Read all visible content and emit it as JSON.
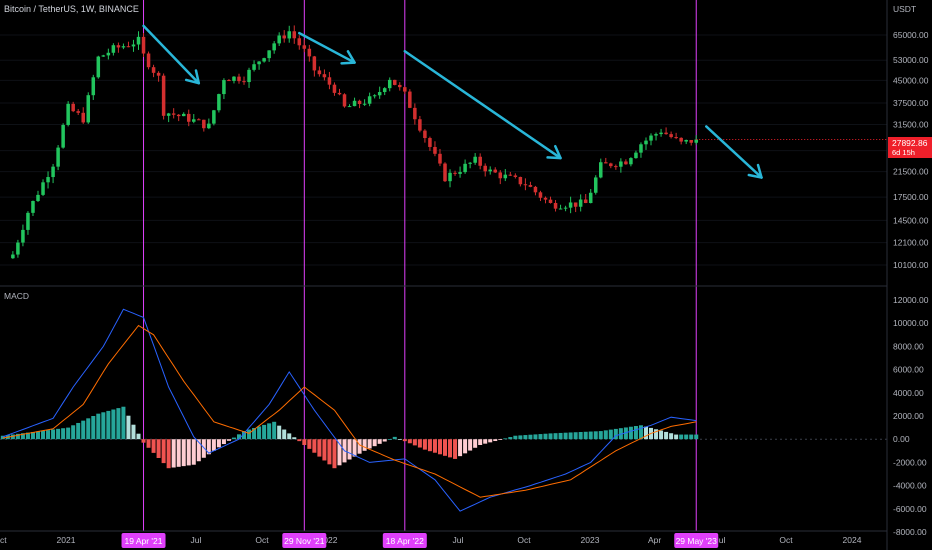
{
  "header": {
    "symbol_line": "Bitcoin / TetherUS, 1W, BINANCE",
    "currency": "USDT"
  },
  "price_badge": {
    "price": "27892.86",
    "countdown": "6d 15h"
  },
  "macd_panel": {
    "label": "MACD"
  },
  "colors": {
    "background": "#000000",
    "up": "#26a69a",
    "down": "#ef5350",
    "candle_up": "#22c55e",
    "candle_down": "#d32f2f",
    "hist_up_strong": "#26a69a",
    "hist_up_weak": "#b2dfdb",
    "hist_down_strong": "#ef5350",
    "hist_down_weak": "#ffcdd2",
    "macd_line": "#2962ff",
    "signal_line": "#ff6d00",
    "vertical_marker": "#e040fb",
    "arrow": "#29b6d8",
    "axis_text": "#b2b5be"
  },
  "chart_data": [
    {
      "type": "candlestick",
      "title": "Bitcoin / TetherUS, 1W, BINANCE",
      "y_scale": "log",
      "ylim": [
        8500,
        85000
      ],
      "y_ticks": [
        "65000.00",
        "53000.00",
        "45000.00",
        "37500.00",
        "31500.00",
        "25500.00",
        "21500.00",
        "17500.00",
        "14500.00",
        "12100.00",
        "10100.00"
      ],
      "x_ticks": [
        "Oct",
        "2021",
        "Apr",
        "Jul",
        "Oct",
        "2022",
        "Apr",
        "Jul",
        "Oct",
        "2023",
        "Apr",
        "Jul",
        "Oct",
        "2024"
      ],
      "current_price": 27892.86,
      "weekly_close_path": [
        {
          "date": "2020-10-19",
          "close": 11000
        },
        {
          "date": "2020-11-09",
          "close": 15500
        },
        {
          "date": "2020-12-14",
          "close": 23000
        },
        {
          "date": "2021-01-04",
          "close": 36000
        },
        {
          "date": "2021-01-25",
          "close": 33000
        },
        {
          "date": "2021-02-15",
          "close": 54000
        },
        {
          "date": "2021-03-08",
          "close": 58000
        },
        {
          "date": "2021-04-12",
          "close": 62000
        },
        {
          "date": "2021-04-19",
          "close": 55000
        },
        {
          "date": "2021-05-10",
          "close": 46000
        },
        {
          "date": "2021-05-17",
          "close": 35000
        },
        {
          "date": "2021-06-21",
          "close": 33000
        },
        {
          "date": "2021-07-19",
          "close": 31000
        },
        {
          "date": "2021-08-09",
          "close": 46000
        },
        {
          "date": "2021-09-06",
          "close": 46000
        },
        {
          "date": "2021-10-18",
          "close": 61000
        },
        {
          "date": "2021-11-08",
          "close": 67000
        },
        {
          "date": "2021-11-29",
          "close": 57000
        },
        {
          "date": "2021-12-13",
          "close": 49000
        },
        {
          "date": "2022-01-10",
          "close": 42000
        },
        {
          "date": "2022-01-24",
          "close": 36000
        },
        {
          "date": "2022-03-07",
          "close": 39000
        },
        {
          "date": "2022-03-28",
          "close": 46000
        },
        {
          "date": "2022-04-18",
          "close": 40000
        },
        {
          "date": "2022-05-09",
          "close": 31000
        },
        {
          "date": "2022-06-13",
          "close": 20500
        },
        {
          "date": "2022-07-25",
          "close": 23500
        },
        {
          "date": "2022-08-15",
          "close": 21500
        },
        {
          "date": "2022-10-03",
          "close": 19500
        },
        {
          "date": "2022-11-07",
          "close": 16500
        },
        {
          "date": "2022-12-26",
          "close": 16600
        },
        {
          "date": "2023-01-16",
          "close": 22500
        },
        {
          "date": "2023-02-20",
          "close": 23500
        },
        {
          "date": "2023-03-13",
          "close": 27000
        },
        {
          "date": "2023-04-10",
          "close": 30000
        },
        {
          "date": "2023-05-08",
          "close": 27000
        },
        {
          "date": "2023-05-29",
          "close": 27892.86
        }
      ]
    },
    {
      "type": "line",
      "title": "MACD",
      "ylim": [
        -8000,
        12000
      ],
      "y_ticks": [
        "12000.00",
        "10000.00",
        "8000.00",
        "6000.00",
        "4000.00",
        "2000.00",
        "0.00",
        "-2000.00",
        "-4000.00",
        "-6000.00",
        "-8000.00"
      ],
      "series": [
        {
          "name": "MACD",
          "values": [
            {
              "date": "2020-10-05",
              "value": 200
            },
            {
              "date": "2020-12-14",
              "value": 1800
            },
            {
              "date": "2021-01-11",
              "value": 4500
            },
            {
              "date": "2021-02-22",
              "value": 8000
            },
            {
              "date": "2021-03-22",
              "value": 11200
            },
            {
              "date": "2021-04-19",
              "value": 10500
            },
            {
              "date": "2021-05-24",
              "value": 4500
            },
            {
              "date": "2021-06-28",
              "value": 200
            },
            {
              "date": "2021-07-19",
              "value": -1200
            },
            {
              "date": "2021-08-30",
              "value": 0
            },
            {
              "date": "2021-10-11",
              "value": 3000
            },
            {
              "date": "2021-11-08",
              "value": 5800
            },
            {
              "date": "2021-12-13",
              "value": 2500
            },
            {
              "date": "2022-01-24",
              "value": -1000
            },
            {
              "date": "2022-02-28",
              "value": -2000
            },
            {
              "date": "2022-04-18",
              "value": -1700
            },
            {
              "date": "2022-05-30",
              "value": -3500
            },
            {
              "date": "2022-07-04",
              "value": -6200
            },
            {
              "date": "2022-08-15",
              "value": -5000
            },
            {
              "date": "2022-10-10",
              "value": -4000
            },
            {
              "date": "2022-11-28",
              "value": -3000
            },
            {
              "date": "2023-01-02",
              "value": -2000
            },
            {
              "date": "2023-02-06",
              "value": 300
            },
            {
              "date": "2023-03-27",
              "value": 1200
            },
            {
              "date": "2023-04-24",
              "value": 1900
            },
            {
              "date": "2023-05-29",
              "value": 1600
            }
          ]
        },
        {
          "name": "Signal",
          "values": [
            {
              "date": "2020-10-05",
              "value": 100
            },
            {
              "date": "2020-12-14",
              "value": 900
            },
            {
              "date": "2021-01-25",
              "value": 3000
            },
            {
              "date": "2021-03-01",
              "value": 6500
            },
            {
              "date": "2021-04-12",
              "value": 9800
            },
            {
              "date": "2021-05-03",
              "value": 9000
            },
            {
              "date": "2021-06-14",
              "value": 5000
            },
            {
              "date": "2021-07-26",
              "value": 1500
            },
            {
              "date": "2021-09-13",
              "value": 500
            },
            {
              "date": "2021-10-25",
              "value": 2500
            },
            {
              "date": "2021-11-29",
              "value": 4500
            },
            {
              "date": "2022-01-10",
              "value": 2500
            },
            {
              "date": "2022-02-14",
              "value": -500
            },
            {
              "date": "2022-04-04",
              "value": -1800
            },
            {
              "date": "2022-05-30",
              "value": -3000
            },
            {
              "date": "2022-08-01",
              "value": -5000
            },
            {
              "date": "2022-10-03",
              "value": -4400
            },
            {
              "date": "2022-12-05",
              "value": -3500
            },
            {
              "date": "2023-02-06",
              "value": -1000
            },
            {
              "date": "2023-03-27",
              "value": 500
            },
            {
              "date": "2023-04-24",
              "value": 1100
            },
            {
              "date": "2023-05-29",
              "value": 1500
            }
          ]
        }
      ],
      "histogram_values": [
        {
          "date": "2020-10-05",
          "value": 300
        },
        {
          "date": "2021-01-04",
          "value": 1000
        },
        {
          "date": "2021-02-15",
          "value": 2200
        },
        {
          "date": "2021-03-22",
          "value": 2800
        },
        {
          "date": "2021-04-19",
          "value": -300
        },
        {
          "date": "2021-05-24",
          "value": -2500
        },
        {
          "date": "2021-06-28",
          "value": -2200
        },
        {
          "date": "2021-08-02",
          "value": -700
        },
        {
          "date": "2021-09-06",
          "value": 700
        },
        {
          "date": "2021-10-18",
          "value": 1500
        },
        {
          "date": "2021-11-29",
          "value": -500
        },
        {
          "date": "2022-01-10",
          "value": -2500
        },
        {
          "date": "2022-02-21",
          "value": -1000
        },
        {
          "date": "2022-04-04",
          "value": 200
        },
        {
          "date": "2022-05-16",
          "value": -900
        },
        {
          "date": "2022-06-27",
          "value": -1700
        },
        {
          "date": "2022-08-01",
          "value": -500
        },
        {
          "date": "2022-09-19",
          "value": 300
        },
        {
          "date": "2022-11-07",
          "value": 500
        },
        {
          "date": "2023-01-16",
          "value": 700
        },
        {
          "date": "2023-03-13",
          "value": 1200
        },
        {
          "date": "2023-05-01",
          "value": 400
        }
      ]
    }
  ],
  "vertical_markers": [
    {
      "date": "2021-04-19",
      "label": "19 Apr '21"
    },
    {
      "date": "2021-11-29",
      "label": "29 Nov '21"
    },
    {
      "date": "2022-04-18",
      "label": "18 Apr '22"
    },
    {
      "date": "2023-05-29",
      "label": "29 May '23"
    }
  ],
  "trend_arrows": [
    {
      "from": {
        "date": "2021-04-19",
        "price": 70000
      },
      "to": {
        "date": "2021-07-05",
        "price": 44000
      }
    },
    {
      "from": {
        "date": "2021-11-22",
        "price": 66000
      },
      "to": {
        "date": "2022-02-07",
        "price": 52000
      }
    },
    {
      "from": {
        "date": "2022-04-18",
        "price": 57000
      },
      "to": {
        "date": "2022-11-21",
        "price": 24000
      }
    },
    {
      "from": {
        "date": "2023-06-12",
        "price": 31000
      },
      "to": {
        "date": "2023-08-28",
        "price": 20500
      }
    }
  ]
}
